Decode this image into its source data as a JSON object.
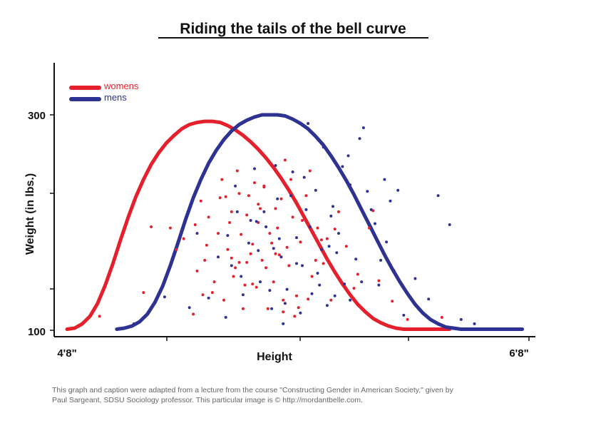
{
  "chart_data": {
    "type": "scatter",
    "title": "Riding the tails of the bell curve",
    "xlabel": "Height",
    "ylabel": "Weight (in lbs.)",
    "x_tick_labels": [
      "4'8\"",
      "6'8\""
    ],
    "y_tick_labels": [
      "300",
      "100"
    ],
    "xlim": [
      56,
      80
    ],
    "ylim": [
      100,
      300
    ],
    "legend_placement": "top-left",
    "series": [
      {
        "name": "womens",
        "kind": "line",
        "color": "#e5202d",
        "x": [
          56.0,
          56.4,
          56.8,
          57.2,
          57.6,
          58.0,
          58.4,
          58.8,
          59.2,
          59.6,
          60.0,
          60.4,
          60.8,
          61.2,
          61.6,
          62.0,
          62.4,
          62.8,
          63.2,
          63.6,
          64.0,
          64.4,
          64.8,
          65.2,
          65.6,
          66.0,
          66.4,
          66.8,
          67.2,
          67.6,
          68.0,
          68.4,
          68.8,
          69.2,
          69.6,
          70.0,
          70.4,
          70.8,
          71.2,
          71.6,
          72.0,
          72.4,
          72.8,
          73.2,
          73.6,
          74.0,
          74.4,
          74.8,
          75.2,
          75.6,
          76.0
        ],
        "y": [
          101,
          102,
          106,
          113,
          125,
          142,
          162,
          184,
          205,
          224,
          240,
          254,
          265,
          274,
          281,
          287,
          291,
          293,
          294,
          294,
          293,
          290,
          286,
          281,
          275,
          268,
          260,
          251,
          241,
          230,
          218,
          205,
          192,
          179,
          166,
          154,
          143,
          133,
          124,
          117,
          111,
          107,
          104,
          102,
          101,
          101,
          101,
          101,
          101,
          101,
          101
        ]
      },
      {
        "name": "mens",
        "kind": "line",
        "color": "#2e3292",
        "x": [
          58.6,
          59.0,
          59.4,
          59.8,
          60.2,
          60.6,
          61.0,
          61.4,
          61.8,
          62.2,
          62.6,
          63.0,
          63.4,
          63.8,
          64.2,
          64.6,
          65.0,
          65.4,
          65.8,
          66.2,
          66.6,
          67.0,
          67.4,
          67.8,
          68.2,
          68.6,
          69.0,
          69.4,
          69.8,
          70.2,
          70.6,
          71.0,
          71.4,
          71.8,
          72.2,
          72.6,
          73.0,
          73.4,
          73.8,
          74.2,
          74.6,
          75.0,
          75.4,
          75.8,
          76.2,
          76.6,
          77.0,
          77.4,
          77.8,
          78.2,
          78.6,
          79.0,
          79.4,
          79.8
        ],
        "y": [
          101,
          102,
          104,
          108,
          115,
          126,
          141,
          160,
          181,
          203,
          223,
          240,
          255,
          267,
          277,
          285,
          291,
          295,
          298,
          300,
          300,
          300,
          299,
          296,
          292,
          287,
          280,
          272,
          262,
          251,
          239,
          226,
          212,
          198,
          184,
          170,
          157,
          145,
          134,
          124,
          116,
          110,
          106,
          103,
          102,
          101,
          101,
          101,
          101,
          101,
          101,
          101,
          101,
          101
        ]
      },
      {
        "name": "womens-points",
        "kind": "scatter",
        "color": "#e5202d",
        "x": [
          57.7,
          60.0,
          60.4,
          61.4,
          61.7,
          62.1,
          62.6,
          62.8,
          63.0,
          63.2,
          63.4,
          63.6,
          63.9,
          64.1,
          64.2,
          64.4,
          64.6,
          64.7,
          64.9,
          65.1,
          65.2,
          65.4,
          65.5,
          65.7,
          65.9,
          66.0,
          66.2,
          66.3,
          66.5,
          66.6,
          66.8,
          66.9,
          67.1,
          67.3,
          67.4,
          67.6,
          67.8,
          68.0,
          68.2,
          68.5,
          68.8,
          69.1,
          69.4,
          69.8,
          70.2,
          70.6,
          71.2,
          71.8,
          72.3,
          73.0,
          73.8,
          75.6,
          63.3,
          63.7,
          64.0,
          64.5,
          64.8,
          65.0,
          65.3,
          65.6,
          65.8,
          66.1,
          66.4,
          66.7,
          67.0,
          67.2,
          67.5,
          67.7,
          67.9,
          68.3,
          68.6,
          69.0,
          69.6,
          70.0,
          64.3,
          65.0,
          65.7,
          66.3,
          66.9,
          67.3,
          62.7,
          63.1,
          64.6,
          65.4,
          66.0,
          68.1,
          68.7,
          69.3,
          71.0,
          72.0
        ],
        "y": [
          113,
          135,
          196,
          195,
          175,
          185,
          115,
          155,
          220,
          165,
          205,
          135,
          190,
          240,
          128,
          175,
          210,
          150,
          248,
          189,
          120,
          163,
          225,
          180,
          140,
          200,
          165,
          233,
          120,
          190,
          145,
          213,
          170,
          128,
          258,
          160,
          205,
          132,
          182,
          225,
          150,
          195,
          162,
          128,
          210,
          178,
          152,
          195,
          146,
          127,
          110,
          112,
          179,
          145,
          223,
          200,
          158,
          227,
          142,
          171,
          237,
          213,
          158,
          181,
          195,
          222,
          177,
          240,
          113,
          202,
          129,
          165,
          185,
          194,
          224,
          163,
          143,
          234,
          171,
          117,
          198,
          133,
          167,
          207,
          217,
          121,
          248,
          184,
          139,
          211
        ]
      },
      {
        "name": "mens-points",
        "kind": "scatter",
        "color": "#2e3292",
        "x": [
          59.5,
          61.1,
          62.4,
          62.8,
          63.4,
          63.9,
          64.3,
          64.6,
          64.9,
          65.2,
          65.5,
          65.8,
          66.1,
          66.4,
          66.7,
          67.0,
          67.2,
          67.5,
          67.8,
          68.0,
          68.3,
          68.5,
          68.8,
          69.0,
          69.3,
          69.6,
          69.9,
          70.2,
          70.5,
          70.8,
          71.1,
          71.5,
          71.9,
          72.3,
          72.7,
          73.1,
          73.6,
          74.2,
          74.9,
          75.4,
          76.0,
          76.6,
          77.3,
          64.4,
          64.8,
          65.1,
          65.6,
          66.0,
          66.3,
          66.6,
          66.9,
          67.1,
          67.4,
          67.7,
          68.0,
          68.4,
          68.7,
          69.1,
          69.4,
          69.8,
          70.1,
          70.4,
          70.8,
          71.3,
          71.7,
          72.1,
          72.6,
          73.3,
          67.3,
          68.2,
          69.2,
          70.0,
          70.7,
          71.4,
          72.4,
          66.8,
          68.6,
          65.9,
          69.7,
          72.9
        ],
        "y": [
          106,
          131,
          121,
          190,
          130,
          168,
          112,
          160,
          210,
          133,
          181,
          250,
          145,
          196,
          120,
          222,
          168,
          138,
          247,
          186,
          160,
          212,
          134,
          230,
          175,
          123,
          215,
          190,
          143,
          235,
          166,
          288,
          212,
          142,
          182,
          155,
          114,
          148,
          129,
          225,
          198,
          110,
          106,
          188,
          234,
          150,
          202,
          174,
          210,
          137,
          253,
          185,
          125,
          225,
          162,
          242,
          196,
          153,
          270,
          206,
          172,
          252,
          128,
          278,
          229,
          199,
          240,
          230,
          106,
          116,
          142,
          132,
          262,
          145,
          165,
          176,
          292,
          201,
          178,
          220
        ]
      }
    ]
  },
  "caption": {
    "line1": "This graph and caption were adapted from a lecture from the course \"Constructing Gender in American Society,\" given by",
    "line2": "Paul Sargeant, SDSU Sociology professor. This particular image is © http://mordantbelle.com."
  }
}
